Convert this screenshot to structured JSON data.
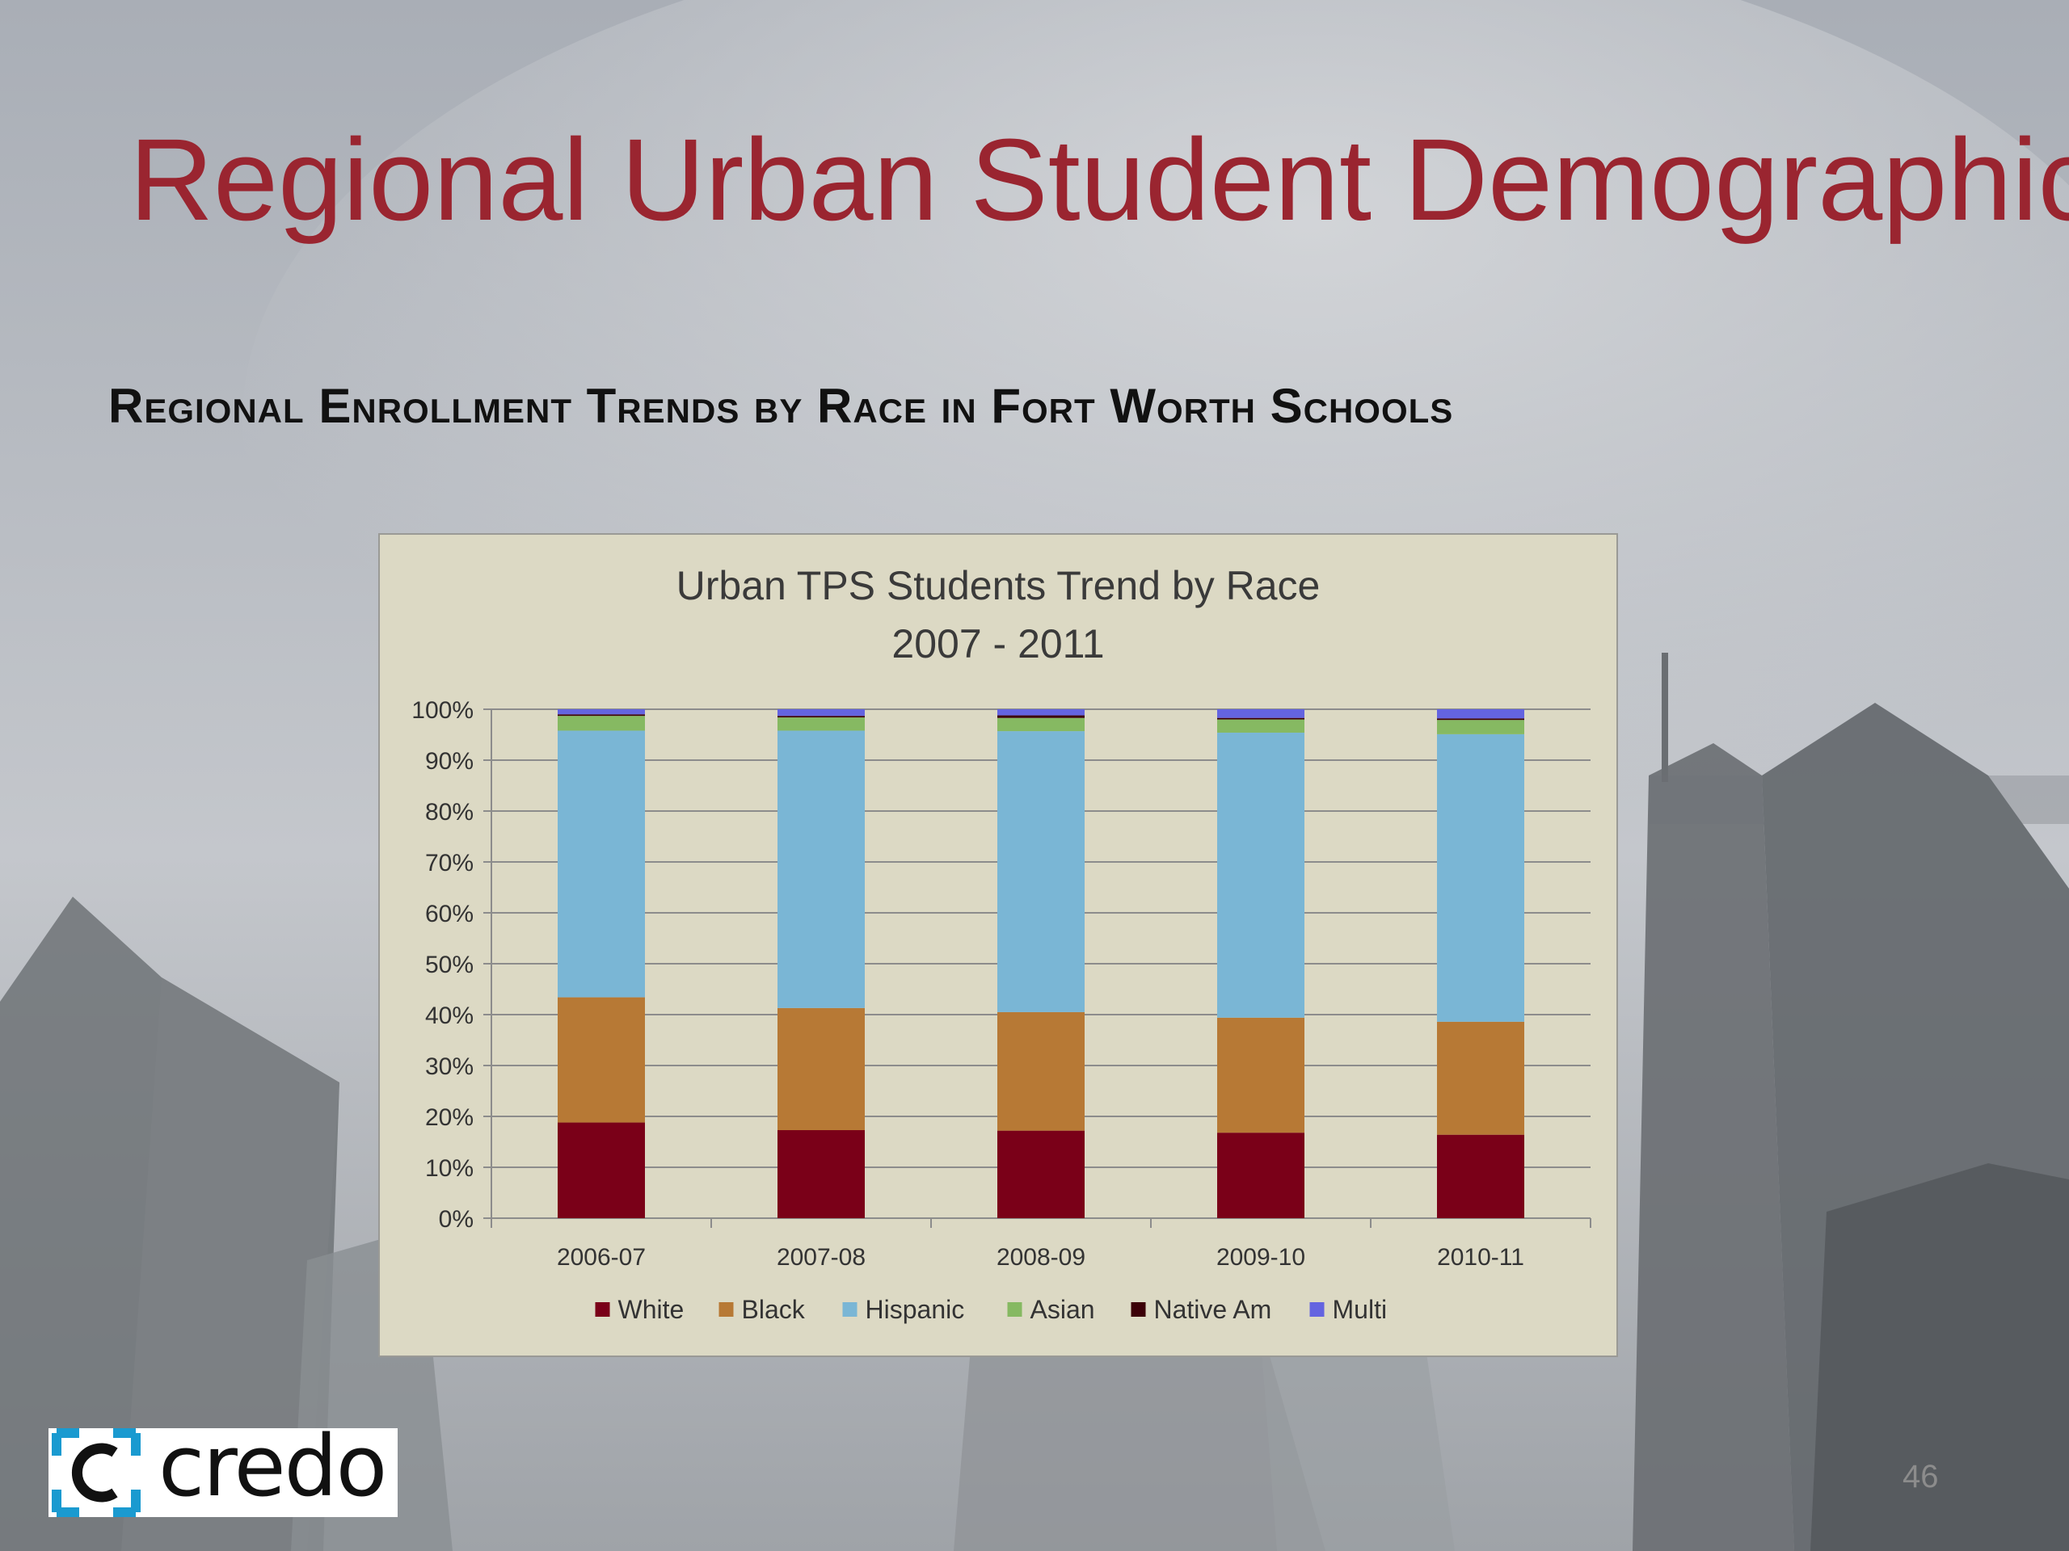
{
  "slide": {
    "title": "Regional Urban Student Demographics",
    "subtitle": "Regional Enrollment Trends by Race in Fort Worth Schools",
    "logo_text": "credo",
    "page_number": "46"
  },
  "colors": {
    "title": "#9a2530",
    "chart_background": "#dcd9c4",
    "logo_accent": "#1a9ad0"
  },
  "chart_data": {
    "type": "bar",
    "stacked": "percent",
    "title": "Urban TPS Students Trend by Race",
    "subtitle": "2007 - 2011",
    "xlabel": "",
    "ylabel": "",
    "categories": [
      "2006-07",
      "2007-08",
      "2008-09",
      "2009-10",
      "2010-11"
    ],
    "ylim": [
      0,
      100
    ],
    "yticks": [
      "0%",
      "10%",
      "20%",
      "30%",
      "40%",
      "50%",
      "60%",
      "70%",
      "80%",
      "90%",
      "100%"
    ],
    "grid": true,
    "legend_position": "bottom",
    "series": [
      {
        "name": "White",
        "color": "#7a0018",
        "values": [
          18.8,
          17.3,
          17.2,
          16.8,
          16.4
        ]
      },
      {
        "name": "Black",
        "color": "#b77935",
        "values": [
          24.6,
          24.0,
          23.3,
          22.6,
          22.2
        ]
      },
      {
        "name": "Hispanic",
        "color": "#7ab6d5",
        "values": [
          52.4,
          54.5,
          55.2,
          56.0,
          56.5
        ]
      },
      {
        "name": "Asian",
        "color": "#86b962",
        "values": [
          2.9,
          2.6,
          2.6,
          2.6,
          2.8
        ]
      },
      {
        "name": "Native Am",
        "color": "#3c0008",
        "values": [
          0.3,
          0.3,
          0.5,
          0.3,
          0.3
        ]
      },
      {
        "name": "Multi",
        "color": "#6464e0",
        "values": [
          1.0,
          1.3,
          1.2,
          1.7,
          1.8
        ]
      }
    ]
  }
}
